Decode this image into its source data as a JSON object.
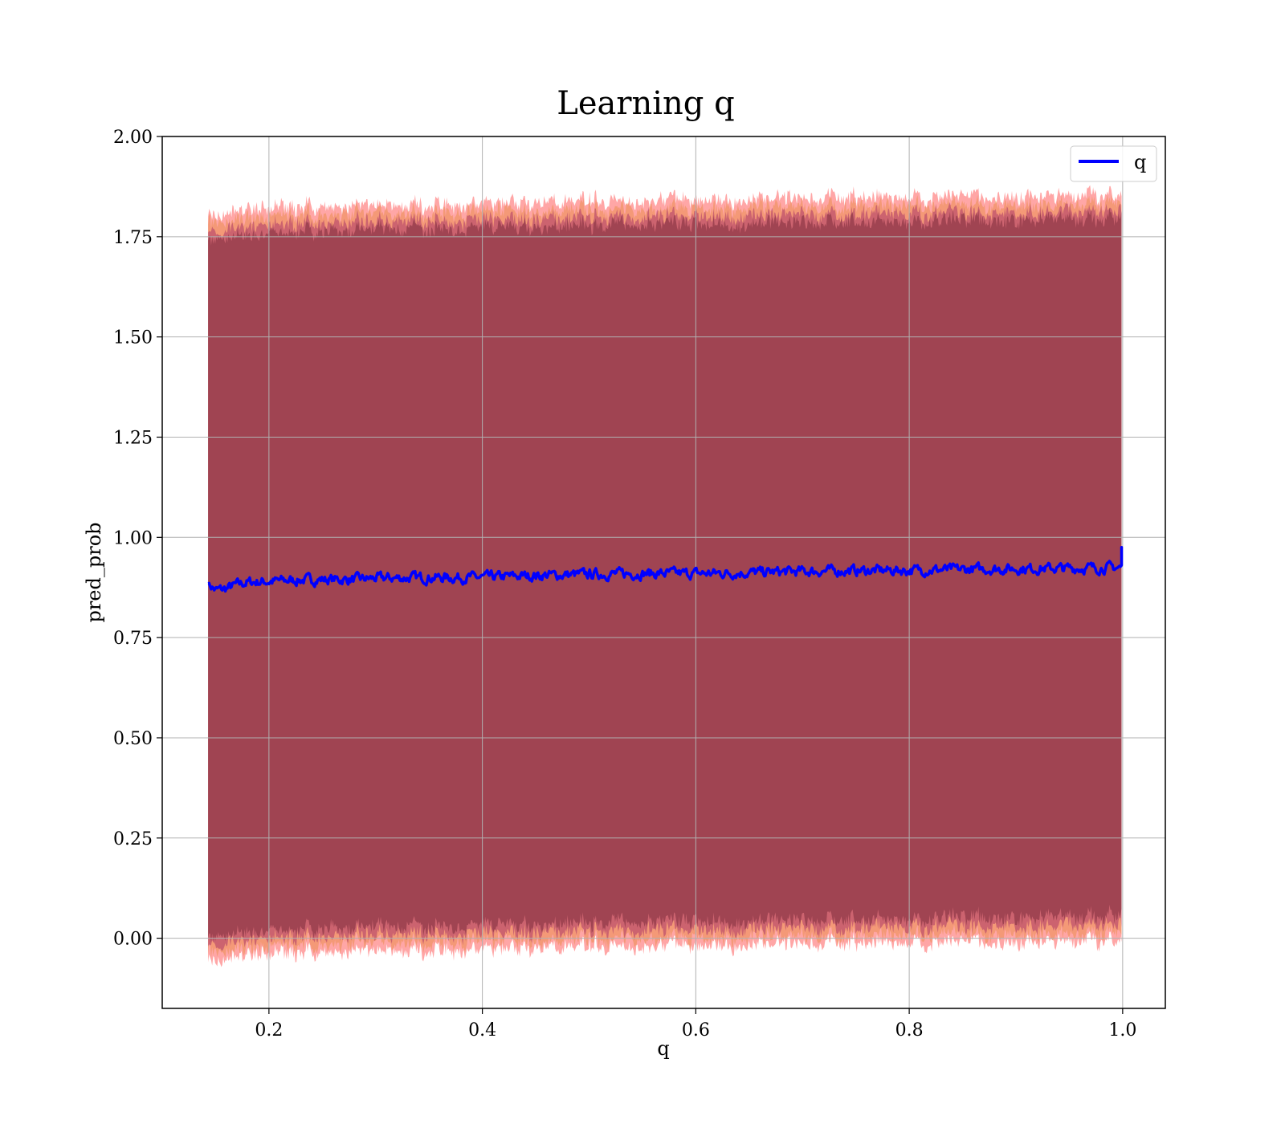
{
  "chart_data": {
    "type": "area",
    "title": "Learning q",
    "xlabel": "q",
    "ylabel": "pred_prob",
    "xlim": [
      0.1,
      1.04
    ],
    "ylim": [
      -0.175,
      2.0
    ],
    "x_ticks": [
      0.2,
      0.4,
      0.6,
      0.8,
      1.0
    ],
    "x_tick_labels": [
      "0.2",
      "0.4",
      "0.6",
      "0.8",
      "1.0"
    ],
    "y_ticks": [
      0.0,
      0.25,
      0.5,
      0.75,
      1.0,
      1.25,
      1.5,
      1.75,
      2.0
    ],
    "y_tick_labels": [
      "0.00",
      "0.25",
      "0.50",
      "0.75",
      "1.00",
      "1.25",
      "1.50",
      "1.75",
      "2.00"
    ],
    "grid": true,
    "legend": {
      "placement": "top-right",
      "entries": [
        "q"
      ]
    },
    "series": [
      {
        "name": "q",
        "color": "#0000ff",
        "x": [
          0.143,
          0.15,
          0.16,
          0.17,
          0.18,
          0.2,
          0.22,
          0.25,
          0.28,
          0.3,
          0.35,
          0.4,
          0.45,
          0.5,
          0.55,
          0.6,
          0.65,
          0.7,
          0.75,
          0.8,
          0.85,
          0.9,
          0.95,
          0.999
        ],
        "values": [
          0.885,
          0.868,
          0.872,
          0.882,
          0.888,
          0.89,
          0.893,
          0.895,
          0.895,
          0.898,
          0.9,
          0.9,
          0.905,
          0.908,
          0.91,
          0.91,
          0.912,
          0.915,
          0.917,
          0.918,
          0.92,
          0.922,
          0.923,
          0.925
        ],
        "end_spike": 0.975
      }
    ],
    "bands": [
      {
        "color": "#ff0000",
        "alpha": 0.35,
        "upper_offset": 0.93,
        "lower_offset": -0.93
      },
      {
        "color": "#e08020",
        "alpha": 0.35,
        "upper_offset": 0.91,
        "lower_offset": -0.91
      },
      {
        "color": "#800060",
        "alpha": 0.35,
        "upper_offset": 0.89,
        "lower_offset": -0.89
      },
      {
        "color": "#6b1f2f",
        "alpha": 0.45,
        "upper_offset": 0.87,
        "lower_offset": -0.87
      }
    ],
    "colors": {
      "fill_main": "#a0707a",
      "grid": "#b0b0b0",
      "axes": "#000000"
    }
  }
}
